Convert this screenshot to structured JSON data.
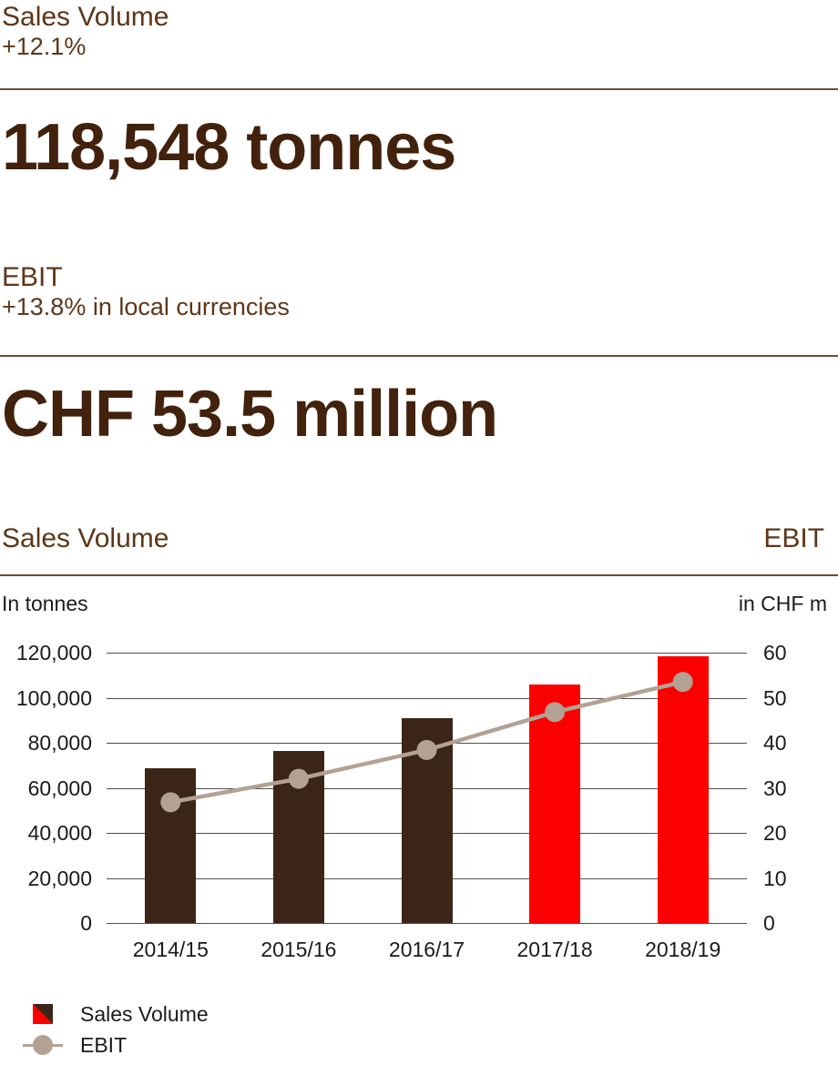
{
  "kpi": {
    "sales": {
      "title": "Sales Volume",
      "delta": "+12.1%",
      "value": "118,548 tonnes"
    },
    "ebit": {
      "title": "EBIT",
      "delta": "+13.8% in local currencies",
      "value": "CHF 53.5 million"
    }
  },
  "chart_header": {
    "left": "Sales Volume",
    "right": "EBIT"
  },
  "chart_units": {
    "left": "In tonnes",
    "right": "in CHF m"
  },
  "legend": {
    "sales_label": "Sales Volume",
    "ebit_label": "EBIT"
  },
  "colors": {
    "bar_brown": "#3a2517",
    "bar_red": "#fc0000",
    "line_taupe": "#b3a294",
    "heading_brown": "#5e3619",
    "value_brown": "#42220d",
    "gridline": "#4f4f4f"
  },
  "chart_data": {
    "type": "bar",
    "title_left": "Sales Volume",
    "title_right": "EBIT",
    "categories": [
      "2014/15",
      "2015/16",
      "2016/17",
      "2017/18",
      "2018/19"
    ],
    "series": [
      {
        "name": "Sales Volume",
        "kind": "bar",
        "axis": "left",
        "values": [
          68700,
          76300,
          90800,
          105750,
          118548
        ],
        "colors": [
          "#3a2517",
          "#3a2517",
          "#3a2517",
          "#fc0000",
          "#fc0000"
        ]
      },
      {
        "name": "EBIT",
        "kind": "line",
        "axis": "right",
        "values": [
          26.8,
          32.0,
          38.4,
          46.8,
          53.5
        ],
        "color": "#b3a294"
      }
    ],
    "left_axis": {
      "label": "In tonnes",
      "max": 120000,
      "min": 0,
      "ticks": [
        "120,000",
        "100,000",
        "80,000",
        "60,000",
        "40,000",
        "20,000",
        "0"
      ]
    },
    "right_axis": {
      "label": "in CHF m",
      "max": 60,
      "min": 0,
      "ticks": [
        "60",
        "50",
        "40",
        "30",
        "20",
        "10",
        "0"
      ]
    },
    "grid": true,
    "legend_position": "bottom-left"
  }
}
